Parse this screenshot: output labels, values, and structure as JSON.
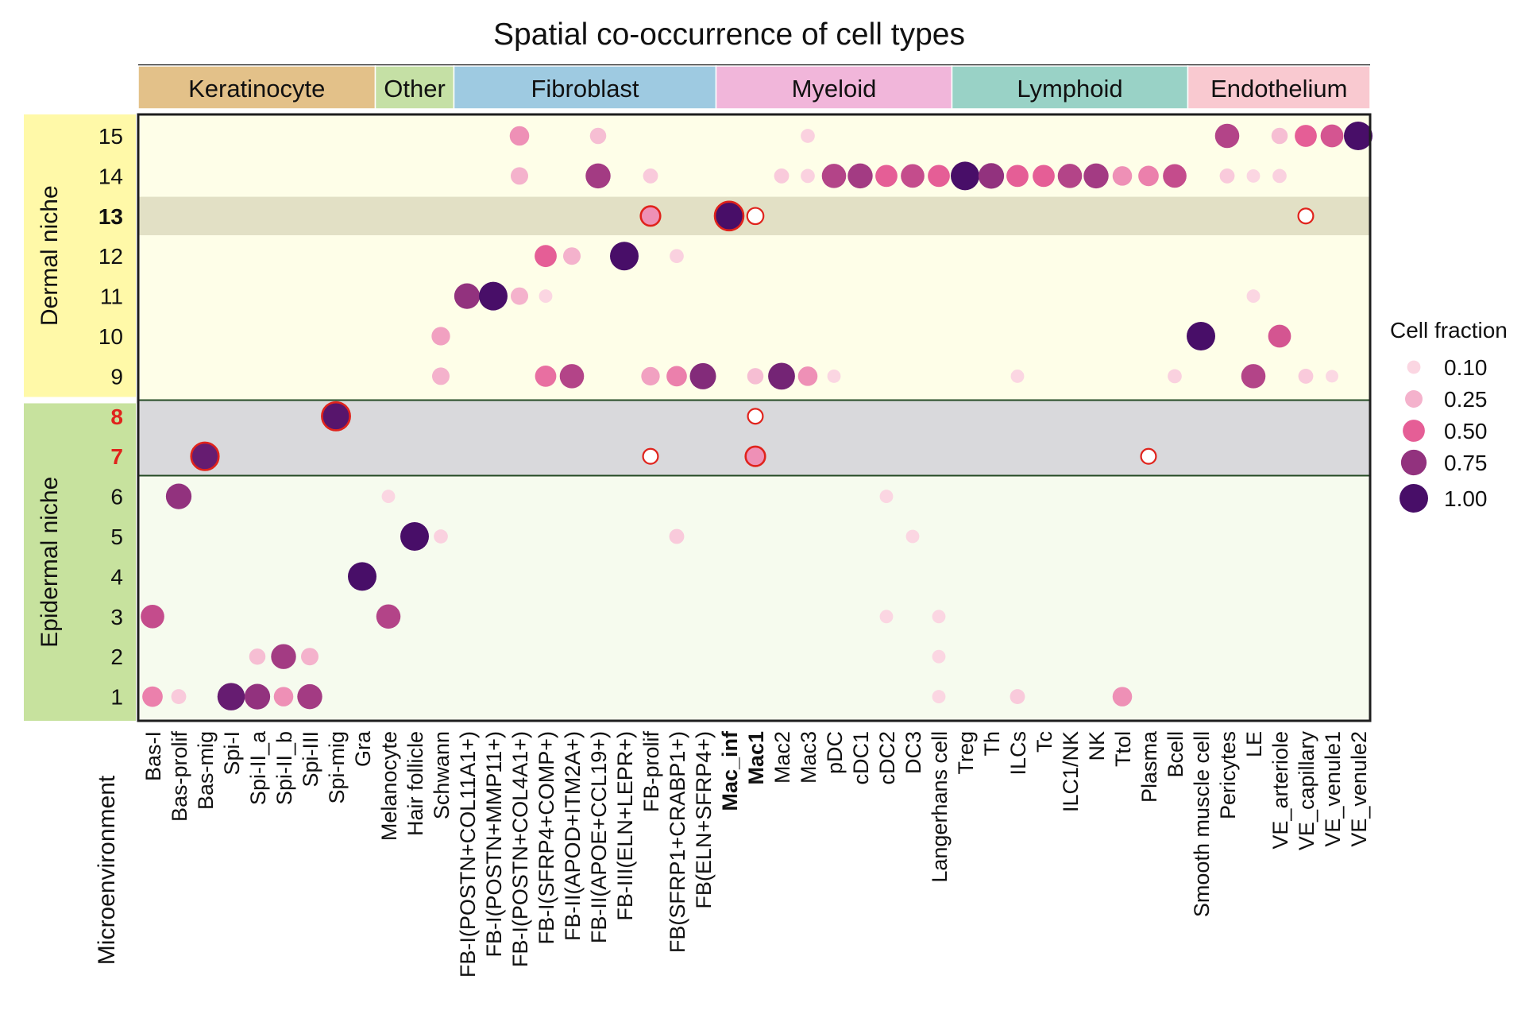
{
  "chart_data": {
    "type": "dotplot",
    "title": "Spatial co-occurrence of cell types",
    "xlabel": "Microenvironment",
    "groups": [
      {
        "name": "Keratinocyte",
        "start": 0,
        "end": 8,
        "color": "#e3c189"
      },
      {
        "name": "Other",
        "start": 9,
        "end": 11,
        "color": "#c5e0a5"
      },
      {
        "name": "Fibroblast",
        "start": 12,
        "end": 21,
        "color": "#9ecae1"
      },
      {
        "name": "Myeloid",
        "start": 22,
        "end": 30,
        "color": "#f1b6da"
      },
      {
        "name": "Lymphoid",
        "start": 31,
        "end": 39,
        "color": "#99d2c6"
      },
      {
        "name": "Endothelium",
        "start": 40,
        "end": 46,
        "color": "#f9c9d0"
      }
    ],
    "columns": [
      "Bas-I",
      "Bas-prolif",
      "Bas-mig",
      "Spi-I",
      "Spi-II_a",
      "Spi-II_b",
      "Spi-III",
      "Spi-mig",
      "Gra",
      "Melanocyte",
      "Hair follicle",
      "Schwann",
      "FB-I(POSTN+COL11A1+)",
      "FB-I(POSTN+MMP11+)",
      "FB-I(POSTN+COL4A1+)",
      "FB-I(SFRP4+COMP+)",
      "FB-II(APOD+ITM2A+)",
      "FB-II(APOE+CCL19+)",
      "FB-III(ELN+LEPR+)",
      "FB-prolif",
      "FB(SFRP1+CRABP1+)",
      "FB(ELN+SFRP4+)",
      "Mac_inf",
      "Mac1",
      "Mac2",
      "Mac3",
      "pDC",
      "cDC1",
      "cDC2",
      "DC3",
      "Langerhans cell",
      "Treg",
      "Th",
      "ILCs",
      "Tc",
      "ILC1/NK",
      "NK",
      "Ttol",
      "Plasma",
      "Bcell",
      "Smooth muscle cell",
      "Pericytes",
      "LE",
      "VE_arteriole",
      "VE_capillary",
      "VE_venule1",
      "VE_venule2"
    ],
    "bold_columns": [
      "Mac_inf",
      "Mac1"
    ],
    "rows": [
      "15",
      "14",
      "13",
      "12",
      "11",
      "10",
      "9",
      "8",
      "7",
      "6",
      "5",
      "4",
      "3",
      "2",
      "1"
    ],
    "highlight_rows": {
      "13": "bold",
      "8": "red",
      "7": "red"
    },
    "niches": [
      {
        "name": "Dermal niche",
        "rows": [
          "15",
          "14",
          "13",
          "12",
          "11",
          "10",
          "9"
        ],
        "color": "#fff9a8",
        "panel": "#fefee8"
      },
      {
        "name": "Epidermal niche",
        "rows": [
          "8",
          "7",
          "6",
          "5",
          "4",
          "3",
          "2",
          "1"
        ],
        "color": "#c7e29e",
        "panel": "#f6fbee"
      }
    ],
    "shaded_rows": [
      {
        "row": "13",
        "color": "#e2e0c5"
      },
      {
        "rows": [
          "8",
          "7"
        ],
        "color": "#d9d9dc"
      }
    ],
    "legend": {
      "title": "Cell fraction",
      "values": [
        0.1,
        0.25,
        0.5,
        0.75,
        1.0
      ],
      "labels": [
        "0.10",
        "0.25",
        "0.50",
        "0.75",
        "1.00"
      ],
      "position": "right"
    },
    "points": [
      {
        "col": "FB-I(POSTN+COL4A1+)",
        "row": "15",
        "v": 0.35
      },
      {
        "col": "FB-II(APOE+CCL19+)",
        "row": "15",
        "v": 0.2
      },
      {
        "col": "Mac3",
        "row": "15",
        "v": 0.12
      },
      {
        "col": "Pericytes",
        "row": "15",
        "v": 0.65
      },
      {
        "col": "VE_arteriole",
        "row": "15",
        "v": 0.2
      },
      {
        "col": "VE_capillary",
        "row": "15",
        "v": 0.5
      },
      {
        "col": "VE_venule1",
        "row": "15",
        "v": 0.55
      },
      {
        "col": "VE_venule2",
        "row": "15",
        "v": 1.0
      },
      {
        "col": "FB-I(POSTN+COL4A1+)",
        "row": "14",
        "v": 0.25
      },
      {
        "col": "FB-II(APOE+CCL19+)",
        "row": "14",
        "v": 0.7
      },
      {
        "col": "FB-prolif",
        "row": "14",
        "v": 0.15
      },
      {
        "col": "Mac2",
        "row": "14",
        "v": 0.15
      },
      {
        "col": "Mac3",
        "row": "14",
        "v": 0.12
      },
      {
        "col": "pDC",
        "row": "14",
        "v": 0.65
      },
      {
        "col": "cDC1",
        "row": "14",
        "v": 0.7
      },
      {
        "col": "cDC2",
        "row": "14",
        "v": 0.5
      },
      {
        "col": "DC3",
        "row": "14",
        "v": 0.6
      },
      {
        "col": "Langerhans cell",
        "row": "14",
        "v": 0.5
      },
      {
        "col": "Treg",
        "row": "14",
        "v": 1.0
      },
      {
        "col": "Th",
        "row": "14",
        "v": 0.75
      },
      {
        "col": "ILCs",
        "row": "14",
        "v": 0.5
      },
      {
        "col": "Tc",
        "row": "14",
        "v": 0.5
      },
      {
        "col": "ILC1/NK",
        "row": "14",
        "v": 0.65
      },
      {
        "col": "NK",
        "row": "14",
        "v": 0.7
      },
      {
        "col": "Ttol",
        "row": "14",
        "v": 0.35
      },
      {
        "col": "Plasma",
        "row": "14",
        "v": 0.4
      },
      {
        "col": "Bcell",
        "row": "14",
        "v": 0.6
      },
      {
        "col": "Pericytes",
        "row": "14",
        "v": 0.15
      },
      {
        "col": "LE",
        "row": "14",
        "v": 0.1
      },
      {
        "col": "VE_arteriole",
        "row": "14",
        "v": 0.12
      },
      {
        "col": "FB-prolif",
        "row": "13",
        "v": 0.35,
        "ring": true
      },
      {
        "col": "Mac_inf",
        "row": "13",
        "v": 1.0,
        "ring": true
      },
      {
        "col": "Mac1",
        "row": "13",
        "v": 0.2,
        "ring": true,
        "hollow": true
      },
      {
        "col": "VE_capillary",
        "row": "13",
        "v": 0.15,
        "ring": true,
        "hollow": true
      },
      {
        "col": "FB-I(SFRP4+COMP+)",
        "row": "12",
        "v": 0.5
      },
      {
        "col": "FB-II(APOD+ITM2A+)",
        "row": "12",
        "v": 0.25
      },
      {
        "col": "FB-III(ELN+LEPR+)",
        "row": "12",
        "v": 1.0
      },
      {
        "col": "FB(SFRP1+CRABP1+)",
        "row": "12",
        "v": 0.12
      },
      {
        "col": "FB-I(POSTN+COL11A1+)",
        "row": "11",
        "v": 0.75
      },
      {
        "col": "FB-I(POSTN+MMP11+)",
        "row": "11",
        "v": 1.0
      },
      {
        "col": "FB-I(POSTN+COL4A1+)",
        "row": "11",
        "v": 0.25
      },
      {
        "col": "FB-I(SFRP4+COMP+)",
        "row": "11",
        "v": 0.1
      },
      {
        "col": "LE",
        "row": "11",
        "v": 0.1
      },
      {
        "col": "Schwann",
        "row": "10",
        "v": 0.3
      },
      {
        "col": "Smooth muscle cell",
        "row": "10",
        "v": 1.0
      },
      {
        "col": "VE_arteriole",
        "row": "10",
        "v": 0.55
      },
      {
        "col": "Schwann",
        "row": "9",
        "v": 0.25
      },
      {
        "col": "FB-I(SFRP4+COMP+)",
        "row": "9",
        "v": 0.45
      },
      {
        "col": "FB-II(APOD+ITM2A+)",
        "row": "9",
        "v": 0.65
      },
      {
        "col": "FB-prolif",
        "row": "9",
        "v": 0.3
      },
      {
        "col": "FB(SFRP1+CRABP1+)",
        "row": "9",
        "v": 0.4
      },
      {
        "col": "FB(ELN+SFRP4+)",
        "row": "9",
        "v": 0.8
      },
      {
        "col": "Mac1",
        "row": "9",
        "v": 0.2
      },
      {
        "col": "Mac2",
        "row": "9",
        "v": 0.85
      },
      {
        "col": "Mac3",
        "row": "9",
        "v": 0.35
      },
      {
        "col": "pDC",
        "row": "9",
        "v": 0.1
      },
      {
        "col": "ILCs",
        "row": "9",
        "v": 0.1
      },
      {
        "col": "Bcell",
        "row": "9",
        "v": 0.12
      },
      {
        "col": "LE",
        "row": "9",
        "v": 0.65
      },
      {
        "col": "VE_capillary",
        "row": "9",
        "v": 0.15
      },
      {
        "col": "VE_venule1",
        "row": "9",
        "v": 0.08
      },
      {
        "col": "Spi-mig",
        "row": "8",
        "v": 0.95,
        "ring": true
      },
      {
        "col": "Mac1",
        "row": "8",
        "v": 0.15,
        "ring": true,
        "hollow": true
      },
      {
        "col": "Bas-mig",
        "row": "7",
        "v": 0.9,
        "ring": true
      },
      {
        "col": "FB-prolif",
        "row": "7",
        "v": 0.15,
        "ring": true,
        "hollow": true
      },
      {
        "col": "Mac1",
        "row": "7",
        "v": 0.35,
        "ring": true
      },
      {
        "col": "Plasma",
        "row": "7",
        "v": 0.15,
        "ring": true,
        "hollow": true
      },
      {
        "col": "Bas-prolif",
        "row": "6",
        "v": 0.75
      },
      {
        "col": "Melanocyte",
        "row": "6",
        "v": 0.1
      },
      {
        "col": "cDC2",
        "row": "6",
        "v": 0.1
      },
      {
        "col": "Hair follicle",
        "row": "5",
        "v": 1.0
      },
      {
        "col": "Schwann",
        "row": "5",
        "v": 0.12
      },
      {
        "col": "FB(SFRP1+CRABP1+)",
        "row": "5",
        "v": 0.15
      },
      {
        "col": "DC3",
        "row": "5",
        "v": 0.1
      },
      {
        "col": "Gra",
        "row": "4",
        "v": 1.0
      },
      {
        "col": "Bas-I",
        "row": "3",
        "v": 0.6
      },
      {
        "col": "Melanocyte",
        "row": "3",
        "v": 0.65
      },
      {
        "col": "cDC2",
        "row": "3",
        "v": 0.1
      },
      {
        "col": "Langerhans cell",
        "row": "3",
        "v": 0.1
      },
      {
        "col": "Spi-II_a",
        "row": "2",
        "v": 0.2
      },
      {
        "col": "Spi-II_b",
        "row": "2",
        "v": 0.7
      },
      {
        "col": "Spi-III",
        "row": "2",
        "v": 0.25
      },
      {
        "col": "Langerhans cell",
        "row": "2",
        "v": 0.1
      },
      {
        "col": "Bas-I",
        "row": "1",
        "v": 0.4
      },
      {
        "col": "Bas-prolif",
        "row": "1",
        "v": 0.15
      },
      {
        "col": "Spi-I",
        "row": "1",
        "v": 0.9
      },
      {
        "col": "Spi-II_a",
        "row": "1",
        "v": 0.75
      },
      {
        "col": "Spi-II_b",
        "row": "1",
        "v": 0.35
      },
      {
        "col": "Spi-III",
        "row": "1",
        "v": 0.7
      },
      {
        "col": "Langerhans cell",
        "row": "1",
        "v": 0.1
      },
      {
        "col": "ILCs",
        "row": "1",
        "v": 0.15
      },
      {
        "col": "Ttol",
        "row": "1",
        "v": 0.35
      }
    ]
  }
}
